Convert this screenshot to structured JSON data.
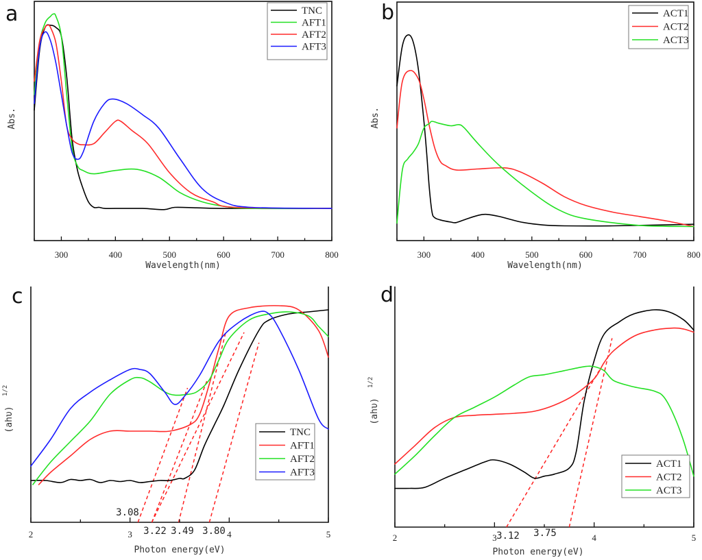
{
  "figure": {
    "colors": {
      "black": "#000000",
      "green": "#22e022",
      "red": "#ff2a2a",
      "blue": "#1a1aff",
      "fit": "#ff2020"
    }
  },
  "chart_data": [
    {
      "panel": "a",
      "type": "line",
      "title": "",
      "xlabel": "Wavelength(nm)",
      "ylabel": "Abs.",
      "xlim": [
        250,
        800
      ],
      "ylim": [
        0,
        1
      ],
      "xticks": [
        300,
        400,
        500,
        600,
        700,
        800
      ],
      "xticklabels": [
        "300",
        "400",
        "500",
        "600",
        "700",
        "800"
      ],
      "grid": false,
      "legend": {
        "position": "top-right",
        "entries": [
          "TNC",
          "AFT1",
          "AFT2",
          "AFT3"
        ]
      },
      "series": [
        {
          "name": "TNC",
          "color": "black",
          "x": [
            250,
            260,
            270,
            280,
            290,
            300,
            310,
            320,
            330,
            340,
            350,
            360,
            370,
            380,
            400,
            450,
            490,
            510,
            550,
            600,
            700,
            800
          ],
          "y": [
            0.55,
            0.82,
            0.92,
            0.93,
            0.92,
            0.88,
            0.7,
            0.42,
            0.28,
            0.2,
            0.14,
            0.115,
            0.115,
            0.11,
            0.11,
            0.11,
            0.105,
            0.115,
            0.113,
            0.11,
            0.11,
            0.11
          ]
        },
        {
          "name": "AFT1",
          "color": "green",
          "x": [
            250,
            260,
            270,
            280,
            285,
            290,
            300,
            310,
            320,
            330,
            340,
            360,
            400,
            440,
            480,
            520,
            560,
            600,
            650,
            800
          ],
          "y": [
            0.62,
            0.85,
            0.94,
            0.97,
            0.98,
            0.97,
            0.88,
            0.62,
            0.38,
            0.3,
            0.28,
            0.265,
            0.28,
            0.285,
            0.25,
            0.18,
            0.14,
            0.12,
            0.11,
            0.11
          ]
        },
        {
          "name": "AFT2",
          "color": "red",
          "x": [
            250,
            260,
            270,
            275,
            280,
            290,
            300,
            310,
            320,
            330,
            340,
            360,
            380,
            400,
            410,
            430,
            460,
            500,
            540,
            580,
            620,
            800
          ],
          "y": [
            0.68,
            0.86,
            0.92,
            0.93,
            0.92,
            0.85,
            0.68,
            0.48,
            0.42,
            0.4,
            0.395,
            0.4,
            0.45,
            0.5,
            0.5,
            0.46,
            0.4,
            0.27,
            0.18,
            0.14,
            0.115,
            0.11
          ]
        },
        {
          "name": "AFT3",
          "color": "blue",
          "x": [
            250,
            260,
            270,
            280,
            290,
            300,
            310,
            320,
            330,
            340,
            360,
            380,
            395,
            420,
            450,
            480,
            520,
            560,
            600,
            650,
            800
          ],
          "y": [
            0.58,
            0.83,
            0.9,
            0.86,
            0.76,
            0.62,
            0.48,
            0.36,
            0.33,
            0.36,
            0.5,
            0.58,
            0.6,
            0.58,
            0.53,
            0.47,
            0.33,
            0.2,
            0.14,
            0.115,
            0.11
          ]
        }
      ]
    },
    {
      "panel": "b",
      "type": "line",
      "title": "",
      "xlabel": "Wavelength(nm)",
      "ylabel": "Abs.",
      "xlim": [
        250,
        800
      ],
      "ylim": [
        0,
        1
      ],
      "xticks": [
        300,
        400,
        500,
        600,
        700,
        800
      ],
      "xticklabels": [
        "300",
        "400",
        "500",
        "600",
        "700",
        "800"
      ],
      "grid": false,
      "legend": {
        "position": "top-right",
        "entries": [
          "ACT1",
          "ACT2",
          "ACT3"
        ]
      },
      "series": [
        {
          "name": "ACT1",
          "color": "black",
          "x": [
            250,
            260,
            270,
            280,
            290,
            300,
            305,
            310,
            315,
            320,
            330,
            350,
            360,
            380,
            400,
            415,
            440,
            480,
            520,
            560,
            650,
            800
          ],
          "y": [
            0.68,
            0.86,
            0.91,
            0.88,
            0.75,
            0.52,
            0.38,
            0.22,
            0.11,
            0.085,
            0.075,
            0.065,
            0.063,
            0.08,
            0.095,
            0.1,
            0.09,
            0.065,
            0.052,
            0.048,
            0.048,
            0.055
          ]
        },
        {
          "name": "ACT2",
          "color": "red",
          "x": [
            250,
            260,
            275,
            290,
            300,
            310,
            320,
            330,
            340,
            360,
            400,
            450,
            480,
            520,
            560,
            600,
            650,
            700,
            750,
            800
          ],
          "y": [
            0.49,
            0.7,
            0.75,
            0.71,
            0.62,
            0.5,
            0.4,
            0.34,
            0.32,
            0.3,
            0.305,
            0.31,
            0.29,
            0.24,
            0.18,
            0.14,
            0.11,
            0.09,
            0.07,
            0.045
          ]
        },
        {
          "name": "ACT3",
          "color": "green",
          "x": [
            250,
            260,
            270,
            280,
            290,
            300,
            310,
            315,
            330,
            350,
            365,
            375,
            400,
            440,
            500,
            550,
            600,
            700,
            800
          ],
          "y": [
            0.06,
            0.3,
            0.35,
            0.38,
            0.42,
            0.49,
            0.51,
            0.52,
            0.51,
            0.5,
            0.505,
            0.49,
            0.42,
            0.32,
            0.2,
            0.12,
            0.08,
            0.05,
            0.045
          ]
        }
      ]
    },
    {
      "panel": "c",
      "type": "line",
      "title": "",
      "xlabel": "Photon energy(eV)",
      "ylabel": "(ahυ)^1/2",
      "xlim": [
        2,
        5
      ],
      "ylim": [
        0,
        1
      ],
      "xticks": [
        2,
        3,
        4,
        5
      ],
      "xticklabels": [
        "2",
        "3",
        "4",
        "5"
      ],
      "grid": false,
      "legend": {
        "position": "lower-right",
        "entries": [
          "TNC",
          "AFT1",
          "AFT2",
          "AFT3"
        ]
      },
      "annotations": [
        "3.08",
        "3.22",
        "3.49",
        "3.80"
      ],
      "band_gaps_eV": {
        "AFT3": 3.08,
        "AFT2": 3.22,
        "AFT1": 3.49,
        "TNC": 3.8
      },
      "series": [
        {
          "name": "TNC",
          "color": "black",
          "x": [
            2.0,
            2.15,
            2.3,
            2.4,
            2.5,
            2.6,
            2.7,
            2.8,
            2.9,
            3.0,
            3.1,
            3.2,
            3.3,
            3.4,
            3.5,
            3.55,
            3.65,
            3.75,
            3.85,
            3.95,
            4.1,
            4.3,
            4.4,
            4.6,
            4.8,
            5.0
          ],
          "y": [
            0.13,
            0.13,
            0.12,
            0.135,
            0.13,
            0.135,
            0.12,
            0.13,
            0.125,
            0.13,
            0.12,
            0.125,
            0.13,
            0.13,
            0.14,
            0.14,
            0.18,
            0.3,
            0.4,
            0.5,
            0.67,
            0.86,
            0.91,
            0.94,
            0.95,
            0.96
          ]
        },
        {
          "name": "AFT1",
          "color": "red",
          "x": [
            2.08,
            2.2,
            2.4,
            2.6,
            2.8,
            3.0,
            3.2,
            3.4,
            3.6,
            3.7,
            3.8,
            3.9,
            4.0,
            4.2,
            4.5,
            4.7,
            4.9,
            5.0
          ],
          "y": [
            0.11,
            0.17,
            0.25,
            0.33,
            0.37,
            0.37,
            0.37,
            0.37,
            0.4,
            0.45,
            0.6,
            0.78,
            0.93,
            0.97,
            0.98,
            0.96,
            0.86,
            0.73
          ]
        },
        {
          "name": "AFT2",
          "color": "green",
          "x": [
            2.02,
            2.2,
            2.4,
            2.6,
            2.8,
            3.0,
            3.1,
            3.2,
            3.4,
            3.6,
            3.7,
            3.8,
            3.9,
            4.0,
            4.2,
            4.4,
            4.6,
            4.8,
            4.9,
            5.0
          ],
          "y": [
            0.11,
            0.22,
            0.32,
            0.42,
            0.55,
            0.62,
            0.63,
            0.61,
            0.55,
            0.55,
            0.57,
            0.62,
            0.72,
            0.82,
            0.91,
            0.94,
            0.95,
            0.93,
            0.88,
            0.83
          ]
        },
        {
          "name": "AFT3",
          "color": "blue",
          "x": [
            2.0,
            2.2,
            2.4,
            2.6,
            2.8,
            3.0,
            3.1,
            3.2,
            3.35,
            3.45,
            3.55,
            3.7,
            3.9,
            4.1,
            4.3,
            4.4,
            4.5,
            4.7,
            4.9,
            5.0
          ],
          "y": [
            0.2,
            0.33,
            0.48,
            0.56,
            0.62,
            0.67,
            0.67,
            0.65,
            0.56,
            0.5,
            0.54,
            0.64,
            0.81,
            0.9,
            0.95,
            0.94,
            0.87,
            0.67,
            0.43,
            0.38
          ]
        }
      ]
    },
    {
      "panel": "d",
      "type": "line",
      "title": "",
      "xlabel": "Photon energy(eV)",
      "ylabel": "(ahυ)^1/2",
      "xlim": [
        2,
        5
      ],
      "ylim": [
        0,
        1
      ],
      "xticks": [
        2,
        3,
        4,
        5
      ],
      "xticklabels": [
        "2",
        "3",
        "4",
        "5"
      ],
      "grid": false,
      "legend": {
        "position": "lower-right",
        "entries": [
          "ACT1",
          "ACT2",
          "ACT3"
        ]
      },
      "annotations": [
        "3.12",
        "3.75"
      ],
      "band_gaps_eV": {
        "ACT3": 3.12,
        "ACT1": 3.75
      },
      "series": [
        {
          "name": "ACT1",
          "color": "black",
          "x": [
            2.0,
            2.15,
            2.3,
            2.5,
            2.7,
            2.9,
            3.0,
            3.15,
            3.3,
            3.4,
            3.5,
            3.6,
            3.75,
            3.82,
            3.9,
            4.0,
            4.1,
            4.25,
            4.4,
            4.6,
            4.75,
            4.9,
            5.0
          ],
          "y": [
            0.12,
            0.12,
            0.125,
            0.17,
            0.21,
            0.25,
            0.26,
            0.24,
            0.2,
            0.17,
            0.18,
            0.19,
            0.22,
            0.3,
            0.55,
            0.75,
            0.88,
            0.94,
            0.98,
            1.0,
            0.99,
            0.95,
            0.9
          ]
        },
        {
          "name": "ACT2",
          "color": "red",
          "x": [
            2.0,
            2.2,
            2.4,
            2.6,
            2.8,
            3.0,
            3.2,
            3.4,
            3.6,
            3.8,
            4.0,
            4.1,
            4.2,
            4.4,
            4.6,
            4.8,
            4.9,
            5.0
          ],
          "y": [
            0.24,
            0.33,
            0.42,
            0.47,
            0.48,
            0.485,
            0.49,
            0.5,
            0.53,
            0.58,
            0.66,
            0.74,
            0.8,
            0.87,
            0.9,
            0.91,
            0.905,
            0.89
          ]
        },
        {
          "name": "ACT3",
          "color": "green",
          "x": [
            2.0,
            2.2,
            2.4,
            2.6,
            2.8,
            3.0,
            3.2,
            3.35,
            3.5,
            3.7,
            3.9,
            4.0,
            4.1,
            4.2,
            4.4,
            4.6,
            4.7,
            4.8,
            4.9,
            5.0
          ],
          "y": [
            0.19,
            0.28,
            0.38,
            0.47,
            0.52,
            0.57,
            0.63,
            0.67,
            0.68,
            0.7,
            0.72,
            0.72,
            0.7,
            0.65,
            0.62,
            0.6,
            0.57,
            0.48,
            0.35,
            0.18
          ]
        }
      ]
    }
  ],
  "panels": {
    "a": {
      "letter": "a",
      "xlabel": "Wavelength(nm)",
      "ylabel": "Abs.",
      "ticks": [
        "300",
        "400",
        "500",
        "600",
        "700",
        "800"
      ],
      "legend": [
        "TNC",
        "AFT1",
        "AFT2",
        "AFT3"
      ]
    },
    "b": {
      "letter": "b",
      "xlabel": "Wavelength(nm)",
      "ylabel": "Abs.",
      "ticks": [
        "300",
        "400",
        "500",
        "600",
        "700",
        "800"
      ],
      "legend": [
        "ACT1",
        "ACT2",
        "ACT3"
      ]
    },
    "c": {
      "letter": "c",
      "xlabel": "Photon energy(eV)",
      "ylabel_main": "(ahυ)",
      "ylabel_sup": "1/2",
      "ticks": [
        "2",
        "3",
        "4",
        "5"
      ],
      "legend": [
        "TNC",
        "AFT1",
        "AFT2",
        "AFT3"
      ],
      "annot": [
        "3.08",
        "3.22",
        "3.49",
        "3.80"
      ]
    },
    "d": {
      "letter": "d",
      "xlabel": "Photon energy(eV)",
      "ylabel_main": "(ahυ)",
      "ylabel_sup": "1/2",
      "ticks": [
        "2",
        "3",
        "4",
        "5"
      ],
      "legend": [
        "ACT1",
        "ACT2",
        "ACT3"
      ],
      "annot": [
        "3.12",
        "3.75"
      ]
    }
  }
}
